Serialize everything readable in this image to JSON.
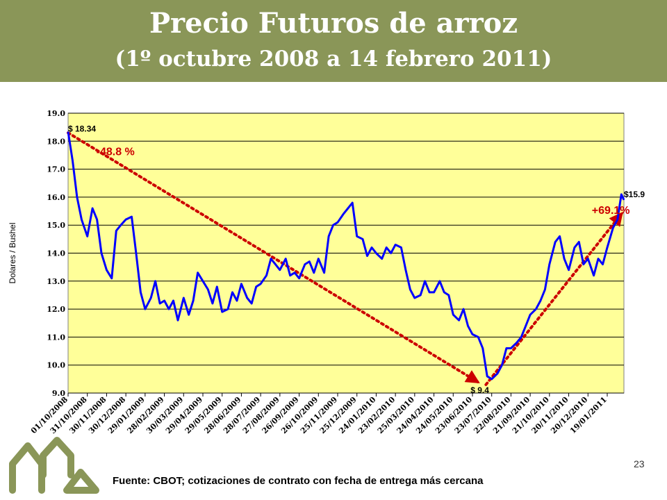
{
  "header": {
    "title_line1": "Precio Futuros de arroz",
    "title_line2": "(1º octubre 2008 a 14 febrero 2011)"
  },
  "footer": {
    "source": "Fuente: CBOT; cotizaciones de contrato con fecha de entrega más cercana",
    "page_number": "23"
  },
  "colors": {
    "header_band": "#8a9658",
    "plot_background": "#ffff99",
    "series_line": "#0000ff",
    "trend_arrows": "#cc0000",
    "logo": "#8a9658"
  },
  "chart_data": {
    "type": "line",
    "ylabel": "Dolares / Bushel",
    "ylim": [
      9.0,
      19.0
    ],
    "y_ticks": [
      "9.0",
      "10.0",
      "11.0",
      "12.0",
      "13.0",
      "14.0",
      "15.0",
      "16.0",
      "17.0",
      "18.0",
      "19.0"
    ],
    "grid": true,
    "x_tick_labels": [
      "01/10/2008",
      "31/10/2008",
      "30/11/2008",
      "30/12/2008",
      "29/01/2009",
      "28/02/2009",
      "30/03/2009",
      "29/04/2009",
      "29/05/2009",
      "28/06/2009",
      "28/07/2009",
      "27/08/2009",
      "26/09/2009",
      "26/10/2009",
      "25/11/2009",
      "25/12/2009",
      "24/01/2010",
      "23/02/2010",
      "25/03/2010",
      "24/04/2010",
      "24/05/2010",
      "23/06/2010",
      "23/07/2010",
      "22/08/2010",
      "21/09/2010",
      "21/10/2010",
      "20/11/2010",
      "20/12/2010",
      "19/01/2011"
    ],
    "x_range": [
      "01/10/2008",
      "14/02/2011"
    ],
    "series": [
      {
        "name": "",
        "x": [
          "01/10/2008",
          "08/10/2008",
          "15/10/2008",
          "22/10/2008",
          "31/10/2008",
          "08/11/2008",
          "15/11/2008",
          "22/11/2008",
          "30/11/2008",
          "08/12/2008",
          "15/12/2008",
          "22/12/2008",
          "30/12/2008",
          "08/01/2009",
          "15/01/2009",
          "22/01/2009",
          "29/01/2009",
          "07/02/2009",
          "14/02/2009",
          "21/02/2009",
          "28/02/2009",
          "07/03/2009",
          "14/03/2009",
          "21/03/2009",
          "30/03/2009",
          "07/04/2009",
          "14/04/2009",
          "21/04/2009",
          "29/04/2009",
          "07/05/2009",
          "14/05/2009",
          "21/05/2009",
          "29/05/2009",
          "07/06/2009",
          "14/06/2009",
          "21/06/2009",
          "28/06/2009",
          "07/07/2009",
          "14/07/2009",
          "21/07/2009",
          "28/07/2009",
          "06/08/2009",
          "13/08/2009",
          "20/08/2009",
          "27/08/2009",
          "05/09/2009",
          "12/09/2009",
          "19/09/2009",
          "26/09/2009",
          "05/10/2009",
          "12/10/2009",
          "19/10/2009",
          "26/10/2009",
          "04/11/2009",
          "11/11/2009",
          "18/11/2009",
          "25/11/2009",
          "04/12/2009",
          "11/12/2009",
          "18/12/2009",
          "25/12/2009",
          "03/01/2010",
          "10/01/2010",
          "17/01/2010",
          "24/01/2010",
          "02/02/2010",
          "09/02/2010",
          "16/02/2010",
          "23/02/2010",
          "04/03/2010",
          "11/03/2010",
          "18/03/2010",
          "25/03/2010",
          "03/04/2010",
          "10/04/2010",
          "17/04/2010",
          "24/04/2010",
          "03/05/2010",
          "10/05/2010",
          "17/05/2010",
          "24/05/2010",
          "02/06/2010",
          "09/06/2010",
          "16/06/2010",
          "23/06/2010",
          "02/07/2010",
          "09/07/2010",
          "16/07/2010",
          "23/07/2010",
          "01/08/2010",
          "08/08/2010",
          "15/08/2010",
          "22/08/2010",
          "31/08/2010",
          "07/09/2010",
          "14/09/2010",
          "21/09/2010",
          "30/09/2010",
          "07/10/2010",
          "14/10/2010",
          "21/10/2010",
          "30/10/2010",
          "06/11/2010",
          "13/11/2010",
          "20/11/2010",
          "29/11/2010",
          "06/12/2010",
          "13/12/2010",
          "20/12/2010",
          "29/12/2010",
          "05/01/2011",
          "12/01/2011",
          "19/01/2011",
          "28/01/2011",
          "04/02/2011",
          "10/02/2011",
          "14/02/2011"
        ],
        "values": [
          18.34,
          17.3,
          16.0,
          15.2,
          14.6,
          15.6,
          15.2,
          14.0,
          13.4,
          13.1,
          14.8,
          15.0,
          15.2,
          15.3,
          14.0,
          12.6,
          12.0,
          12.4,
          13.0,
          12.2,
          12.3,
          12.0,
          12.3,
          11.6,
          12.4,
          11.8,
          12.3,
          13.3,
          13.0,
          12.7,
          12.2,
          12.8,
          11.9,
          12.0,
          12.6,
          12.3,
          12.9,
          12.4,
          12.2,
          12.8,
          12.9,
          13.2,
          13.8,
          13.6,
          13.4,
          13.8,
          13.2,
          13.3,
          13.1,
          13.6,
          13.7,
          13.3,
          13.8,
          13.3,
          14.6,
          15.0,
          15.1,
          15.4,
          15.6,
          15.8,
          14.6,
          14.5,
          13.9,
          14.2,
          14.0,
          13.8,
          14.2,
          14.0,
          14.3,
          14.2,
          13.4,
          12.7,
          12.4,
          12.5,
          13.0,
          12.6,
          12.6,
          13.0,
          12.6,
          12.5,
          11.8,
          11.6,
          12.0,
          11.4,
          11.1,
          11.0,
          10.6,
          9.6,
          9.5,
          9.7,
          10.0,
          10.6,
          10.6,
          10.8,
          11.0,
          11.4,
          11.8,
          12.0,
          12.3,
          12.7,
          13.6,
          14.4,
          14.6,
          13.8,
          13.4,
          14.2,
          14.4,
          13.6,
          13.8,
          13.2,
          13.8,
          13.6,
          14.2,
          14.9,
          15.2,
          16.1,
          15.9
        ]
      }
    ],
    "annotations": [
      {
        "text": "$ 18.34",
        "x": "01/10/2008",
        "y": 18.34,
        "color": "#000000"
      },
      {
        "text": "-48.8 %",
        "x": "14/11/2008",
        "y": 17.5,
        "color": "#cc0000"
      },
      {
        "text": "$ 9.4",
        "x": "20/06/2010",
        "y": 9.0,
        "color": "#000000"
      },
      {
        "text": "+69.1%",
        "x": "26/12/2010",
        "y": 15.4,
        "color": "#cc0000"
      },
      {
        "text": "$15.9",
        "x": "14/02/2011",
        "y": 16.0,
        "color": "#000000"
      }
    ],
    "trend_arrows": [
      {
        "from": {
          "x": "01/10/2008",
          "y": 18.3
        },
        "to": {
          "x": "01/07/2010",
          "y": 9.4
        }
      },
      {
        "from": {
          "x": "14/07/2010",
          "y": 9.3
        },
        "to": {
          "x": "10/02/2011",
          "y": 15.4
        }
      }
    ]
  }
}
